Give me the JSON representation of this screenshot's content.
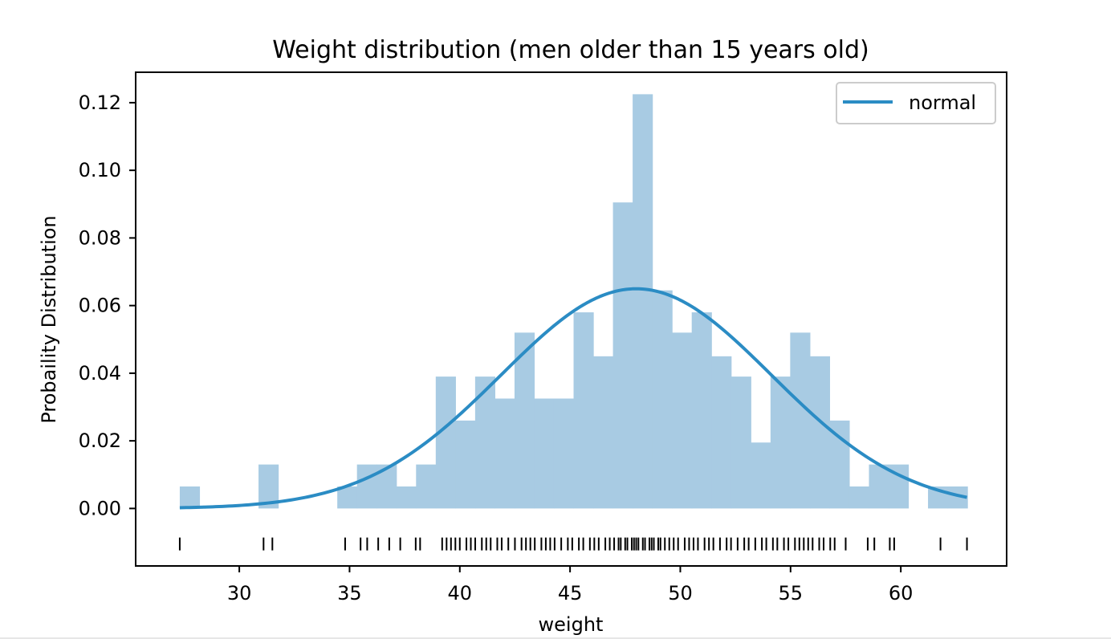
{
  "chart_data": {
    "type": "bar",
    "title": "Weight distribution (men older than 15 years old)",
    "xlabel": "weight",
    "ylabel": "Probaility Distribution",
    "xlim": [
      25.3,
      64.8
    ],
    "ylim": [
      -0.017,
      0.129
    ],
    "x_ticks": [
      30,
      35,
      40,
      45,
      50,
      55,
      60
    ],
    "y_ticks": [
      0.0,
      0.02,
      0.04,
      0.06,
      0.08,
      0.1,
      0.12
    ],
    "x_tick_labels": [
      "30",
      "35",
      "40",
      "45",
      "50",
      "55",
      "60"
    ],
    "y_tick_labels": [
      "0.00",
      "0.02",
      "0.04",
      "0.06",
      "0.08",
      "0.10",
      "0.12"
    ],
    "legend_position": "top-right",
    "grid": false,
    "histogram": {
      "bin_start": 27.3,
      "bin_width": 0.893,
      "counts_density": [
        0.0065,
        0,
        0,
        0,
        0.013,
        0,
        0,
        0,
        0.0065,
        0.013,
        0.013,
        0.0065,
        0.013,
        0.039,
        0.026,
        0.039,
        0.0325,
        0.052,
        0.0325,
        0.0325,
        0.058,
        0.045,
        0.0905,
        0.1225,
        0.0645,
        0.052,
        0.058,
        0.045,
        0.039,
        0.0195,
        0.039,
        0.052,
        0.045,
        0.026,
        0.0065,
        0.013,
        0.013,
        0,
        0.0065,
        0.0065
      ],
      "color": "#a8cbe3"
    },
    "series": [
      {
        "name": "normal",
        "type": "line",
        "mean": 48.0,
        "std": 6.14,
        "x_range": [
          27.3,
          63.0
        ],
        "color": "#2b8cc4"
      }
    ],
    "rug": {
      "y": -0.0105,
      "color": "#000000",
      "values": [
        27.3,
        31.1,
        31.5,
        34.8,
        35.5,
        35.8,
        36.3,
        36.8,
        37.3,
        38.0,
        38.2,
        39.2,
        39.4,
        39.6,
        39.8,
        40.0,
        40.3,
        40.5,
        40.7,
        41.0,
        41.2,
        41.4,
        41.7,
        41.9,
        42.2,
        42.5,
        42.8,
        43.0,
        43.2,
        43.4,
        43.7,
        43.9,
        44.1,
        44.3,
        44.6,
        44.9,
        45.1,
        45.4,
        45.6,
        45.9,
        46.1,
        46.3,
        46.6,
        46.8,
        47.0,
        47.2,
        47.3,
        47.5,
        47.6,
        47.8,
        47.9,
        48.0,
        48.1,
        48.3,
        48.4,
        48.6,
        48.7,
        48.8,
        49.0,
        49.1,
        49.3,
        49.5,
        49.7,
        49.9,
        50.2,
        50.4,
        50.6,
        50.8,
        51.1,
        51.3,
        51.5,
        51.8,
        52.1,
        52.3,
        52.6,
        52.9,
        53.1,
        53.4,
        53.7,
        53.9,
        54.2,
        54.4,
        54.7,
        54.9,
        55.2,
        55.4,
        55.6,
        55.8,
        56.0,
        56.3,
        56.5,
        56.8,
        57.0,
        57.5,
        58.5,
        58.8,
        59.5,
        59.7,
        61.8,
        63.0
      ]
    }
  }
}
